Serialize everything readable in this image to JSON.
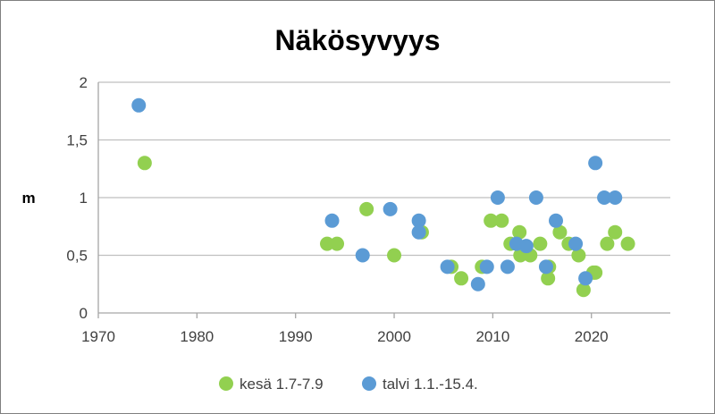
{
  "chart_data": {
    "type": "scatter",
    "title": "Näkösyvyys",
    "xlabel": "",
    "ylabel": "m",
    "xlim": [
      1970,
      2028
    ],
    "ylim": [
      0,
      2
    ],
    "xticks": [
      1970,
      1980,
      1990,
      2000,
      2010,
      2020
    ],
    "yticks": [
      0,
      0.5,
      1,
      1.5,
      2
    ],
    "xtick_labels": [
      "1970",
      "1980",
      "1990",
      "2000",
      "2010",
      "2020"
    ],
    "ytick_labels": [
      "0",
      "0,5",
      "1",
      "1,5",
      "2"
    ],
    "grid": "horizontal",
    "legend_position": "bottom",
    "series": [
      {
        "name": "kesä 1.7-7.9",
        "color": "#92d050",
        "points": [
          [
            1974.7,
            1.3
          ],
          [
            1993.2,
            0.6
          ],
          [
            1994.2,
            0.6
          ],
          [
            1997.2,
            0.9
          ],
          [
            2000.0,
            0.5
          ],
          [
            2002.8,
            0.7
          ],
          [
            2005.8,
            0.4
          ],
          [
            2006.8,
            0.3
          ],
          [
            2008.9,
            0.4
          ],
          [
            2009.8,
            0.8
          ],
          [
            2010.9,
            0.8
          ],
          [
            2011.8,
            0.6
          ],
          [
            2012.7,
            0.7
          ],
          [
            2012.8,
            0.5
          ],
          [
            2013.8,
            0.5
          ],
          [
            2014.8,
            0.6
          ],
          [
            2015.7,
            0.4
          ],
          [
            2015.6,
            0.3
          ],
          [
            2016.8,
            0.7
          ],
          [
            2017.7,
            0.6
          ],
          [
            2018.7,
            0.5
          ],
          [
            2019.2,
            0.2
          ],
          [
            2020.2,
            0.35
          ],
          [
            2020.4,
            0.35
          ],
          [
            2021.6,
            0.6
          ],
          [
            2022.4,
            0.7
          ],
          [
            2023.7,
            0.6
          ]
        ]
      },
      {
        "name": "talvi 1.1.-15.4.",
        "color": "#5b9bd5",
        "points": [
          [
            1974.1,
            1.8
          ],
          [
            1993.7,
            0.8
          ],
          [
            1996.8,
            0.5
          ],
          [
            1999.6,
            0.9
          ],
          [
            2002.5,
            0.8
          ],
          [
            2002.5,
            0.7
          ],
          [
            2005.4,
            0.4
          ],
          [
            2008.5,
            0.25
          ],
          [
            2009.4,
            0.4
          ],
          [
            2010.5,
            1.0
          ],
          [
            2011.5,
            0.4
          ],
          [
            2012.4,
            0.6
          ],
          [
            2013.4,
            0.58
          ],
          [
            2014.4,
            1.0
          ],
          [
            2015.4,
            0.4
          ],
          [
            2016.4,
            0.8
          ],
          [
            2018.4,
            0.6
          ],
          [
            2019.4,
            0.3
          ],
          [
            2020.4,
            1.3
          ],
          [
            2021.3,
            1.0
          ],
          [
            2022.4,
            1.0
          ]
        ]
      }
    ]
  }
}
